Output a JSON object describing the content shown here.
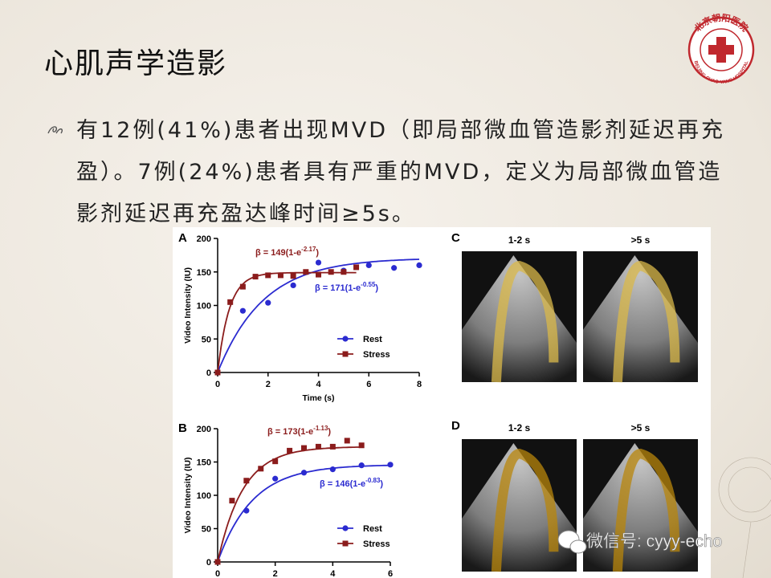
{
  "header": {
    "title": "心肌声学造影"
  },
  "logo": {
    "name_cn": "北京朝阳医院",
    "name_en": "BEIJING CHAO-YANG HOSPITAL"
  },
  "body": {
    "bullet": "有12例(41%)患者出现MVD（即局部微血管造影剂延迟再充盈）。7例(24%)患者具有严重的MVD，定义为局部微血管造影剂延迟再充盈达峰时间≥5s。"
  },
  "figure": {
    "charts": [
      {
        "panel": "A",
        "y_label": "Video Intensity (IU)",
        "x_label": "Time (s)",
        "xlim": [
          0,
          8
        ],
        "ylim": [
          0,
          200
        ],
        "xticks": [
          0,
          2,
          4,
          6,
          8
        ],
        "yticks": [
          0,
          50,
          100,
          150,
          200
        ],
        "series": [
          {
            "name": "Rest",
            "color": "#2b2bd0",
            "marker": "circle",
            "x": [
              0,
              1,
              2,
              3,
              4,
              5,
              6,
              7,
              8
            ],
            "values": [
              0,
              92,
              104,
              130,
              164,
              152,
              160,
              156,
              160
            ],
            "fit": {
              "beta": 171,
              "k": 0.55,
              "prefix": "β = 171(1-e",
              "exponent": "-0.55",
              "suffix": ")"
            }
          },
          {
            "name": "Stress",
            "color": "#8b1c1c",
            "marker": "square",
            "x": [
              0,
              0.5,
              1,
              1.5,
              2,
              2.5,
              3,
              3.5,
              4,
              4.5,
              5,
              5.5
            ],
            "values": [
              0,
              105,
              128,
              143,
              145,
              145,
              144,
              150,
              146,
              150,
              150,
              157
            ],
            "fit": {
              "beta": 149,
              "k": 2.17,
              "prefix": "β = 149(1-e",
              "exponent": "-2.17",
              "suffix": ")"
            }
          }
        ]
      },
      {
        "panel": "B",
        "y_label": "Video Intensity (IU)",
        "xlim": [
          0,
          6
        ],
        "ylim": [
          0,
          200
        ],
        "xticks": [
          0,
          2,
          4,
          6
        ],
        "yticks": [
          0,
          50,
          100,
          150,
          200
        ],
        "series": [
          {
            "name": "Rest",
            "color": "#2b2bd0",
            "marker": "circle",
            "x": [
              0,
              1,
              2,
              3,
              4,
              5,
              6
            ],
            "values": [
              0,
              77,
              125,
              134,
              139,
              145,
              146
            ],
            "fit": {
              "beta": 146,
              "k": 0.83,
              "prefix": "β = 146(1-e",
              "exponent": "-0.83",
              "suffix": ")"
            }
          },
          {
            "name": "Stress",
            "color": "#8b1c1c",
            "marker": "square",
            "x": [
              0,
              0.5,
              1,
              1.5,
              2,
              2.5,
              3,
              3.5,
              4,
              4.5,
              5
            ],
            "values": [
              0,
              92,
              122,
              140,
              151,
              167,
              171,
              173,
              173,
              182,
              175
            ],
            "fit": {
              "beta": 173,
              "k": 1.13,
              "prefix": "β = 173(1-e",
              "exponent": "-1.13",
              "suffix": ")"
            }
          }
        ]
      }
    ],
    "images": [
      {
        "panel": "C",
        "labels": [
          "1-2 s",
          ">5 s"
        ]
      },
      {
        "panel": "D",
        "labels": [
          "1-2 s",
          ">5 s"
        ]
      }
    ]
  },
  "watermark": "微信号: cyyy-echo"
}
